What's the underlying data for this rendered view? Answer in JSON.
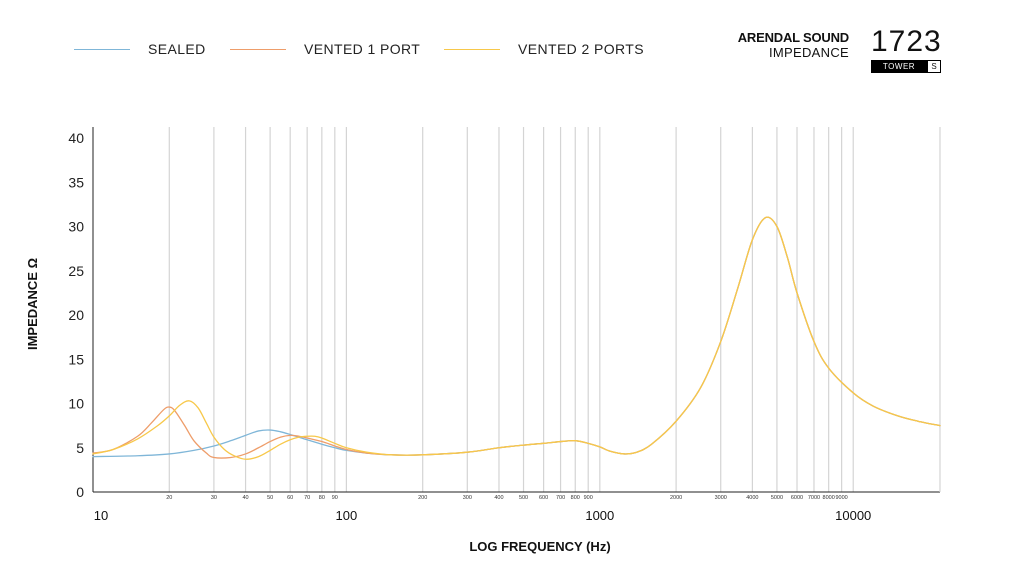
{
  "legend": [
    {
      "label": "SEALED",
      "color": "#7fb6d8"
    },
    {
      "label": "VENTED 1 PORT",
      "color": "#ee9d6a"
    },
    {
      "label": "VENTED 2 PORTS",
      "color": "#f7c84a"
    }
  ],
  "brand": {
    "name": "ARENDAL SOUND",
    "subtitle": "IMPEDANCE"
  },
  "model": {
    "number": "1723",
    "tag": "TOWER",
    "variant": "S"
  },
  "chart_data": {
    "type": "line",
    "xlabel": "LOG FREQUENCY (Hz)",
    "ylabel": "IMPEDANCE Ω",
    "x_scale": "log",
    "xlim": [
      10,
      22000
    ],
    "ylim": [
      0,
      40
    ],
    "y_ticks": [
      0,
      5,
      10,
      15,
      20,
      25,
      30,
      35,
      40
    ],
    "x_major_ticks": [
      10,
      100,
      1000,
      10000
    ],
    "x_minor_ticks": [
      20,
      30,
      40,
      50,
      60,
      70,
      80,
      90,
      200,
      300,
      400,
      500,
      600,
      700,
      800,
      900,
      2000,
      3000,
      4000,
      5000,
      6000,
      7000,
      8000,
      9000
    ],
    "grid": "vertical",
    "series": [
      {
        "name": "SEALED",
        "color": "#7fb6d8",
        "points": [
          [
            10,
            4.0
          ],
          [
            15,
            4.1
          ],
          [
            20,
            4.3
          ],
          [
            25,
            4.7
          ],
          [
            30,
            5.2
          ],
          [
            35,
            5.8
          ],
          [
            40,
            6.4
          ],
          [
            45,
            6.9
          ],
          [
            50,
            7.0
          ],
          [
            55,
            6.8
          ],
          [
            60,
            6.5
          ],
          [
            70,
            5.9
          ],
          [
            80,
            5.4
          ],
          [
            90,
            5.0
          ],
          [
            100,
            4.7
          ],
          [
            120,
            4.4
          ],
          [
            150,
            4.2
          ],
          [
            200,
            4.2
          ],
          [
            300,
            4.5
          ],
          [
            400,
            5.0
          ],
          [
            500,
            5.3
          ],
          [
            600,
            5.5
          ],
          [
            700,
            5.7
          ],
          [
            800,
            5.8
          ],
          [
            900,
            5.5
          ],
          [
            1000,
            5.1
          ],
          [
            1100,
            4.6
          ],
          [
            1250,
            4.3
          ],
          [
            1400,
            4.5
          ],
          [
            1600,
            5.4
          ],
          [
            2000,
            8.0
          ],
          [
            2500,
            11.8
          ],
          [
            3000,
            17.0
          ],
          [
            3500,
            23.0
          ],
          [
            4000,
            28.5
          ],
          [
            4500,
            31.0
          ],
          [
            5000,
            30.0
          ],
          [
            5500,
            26.5
          ],
          [
            6000,
            22.5
          ],
          [
            7000,
            17.0
          ],
          [
            8000,
            14.0
          ],
          [
            10000,
            11.2
          ],
          [
            12000,
            9.7
          ],
          [
            15000,
            8.6
          ],
          [
            18000,
            8.0
          ],
          [
            22000,
            7.5
          ]
        ]
      },
      {
        "name": "VENTED 1 PORT",
        "color": "#ee9d6a",
        "points": [
          [
            10,
            4.4
          ],
          [
            12,
            4.8
          ],
          [
            15,
            6.3
          ],
          [
            17,
            7.8
          ],
          [
            19,
            9.3
          ],
          [
            20,
            9.6
          ],
          [
            21,
            9.2
          ],
          [
            23,
            7.5
          ],
          [
            25,
            5.8
          ],
          [
            28,
            4.4
          ],
          [
            30,
            3.9
          ],
          [
            35,
            3.9
          ],
          [
            40,
            4.3
          ],
          [
            45,
            5.0
          ],
          [
            50,
            5.7
          ],
          [
            55,
            6.2
          ],
          [
            60,
            6.4
          ],
          [
            65,
            6.3
          ],
          [
            70,
            6.1
          ],
          [
            80,
            5.7
          ],
          [
            90,
            5.2
          ],
          [
            100,
            4.8
          ],
          [
            120,
            4.4
          ],
          [
            150,
            4.2
          ],
          [
            200,
            4.2
          ],
          [
            300,
            4.5
          ],
          [
            400,
            5.0
          ],
          [
            500,
            5.3
          ],
          [
            600,
            5.5
          ],
          [
            700,
            5.7
          ],
          [
            800,
            5.8
          ],
          [
            900,
            5.5
          ],
          [
            1000,
            5.1
          ],
          [
            1100,
            4.6
          ],
          [
            1250,
            4.3
          ],
          [
            1400,
            4.5
          ],
          [
            1600,
            5.4
          ],
          [
            2000,
            8.0
          ],
          [
            2500,
            11.8
          ],
          [
            3000,
            17.0
          ],
          [
            3500,
            23.0
          ],
          [
            4000,
            28.5
          ],
          [
            4500,
            31.0
          ],
          [
            5000,
            30.0
          ],
          [
            5500,
            26.5
          ],
          [
            6000,
            22.5
          ],
          [
            7000,
            17.0
          ],
          [
            8000,
            14.0
          ],
          [
            10000,
            11.2
          ],
          [
            12000,
            9.7
          ],
          [
            15000,
            8.6
          ],
          [
            18000,
            8.0
          ],
          [
            22000,
            7.5
          ]
        ]
      },
      {
        "name": "VENTED 2 PORTS",
        "color": "#f7c84a",
        "points": [
          [
            10,
            4.3
          ],
          [
            12,
            4.8
          ],
          [
            15,
            6.0
          ],
          [
            18,
            7.5
          ],
          [
            20,
            8.6
          ],
          [
            22,
            9.8
          ],
          [
            24,
            10.3
          ],
          [
            26,
            9.5
          ],
          [
            28,
            7.8
          ],
          [
            30,
            6.2
          ],
          [
            33,
            4.8
          ],
          [
            36,
            4.1
          ],
          [
            40,
            3.7
          ],
          [
            45,
            4.0
          ],
          [
            50,
            4.7
          ],
          [
            55,
            5.4
          ],
          [
            60,
            5.9
          ],
          [
            65,
            6.2
          ],
          [
            70,
            6.3
          ],
          [
            75,
            6.3
          ],
          [
            80,
            6.1
          ],
          [
            90,
            5.5
          ],
          [
            100,
            5.0
          ],
          [
            120,
            4.5
          ],
          [
            150,
            4.2
          ],
          [
            200,
            4.2
          ],
          [
            300,
            4.5
          ],
          [
            400,
            5.0
          ],
          [
            500,
            5.3
          ],
          [
            600,
            5.5
          ],
          [
            700,
            5.7
          ],
          [
            800,
            5.8
          ],
          [
            900,
            5.5
          ],
          [
            1000,
            5.1
          ],
          [
            1100,
            4.6
          ],
          [
            1250,
            4.3
          ],
          [
            1400,
            4.5
          ],
          [
            1600,
            5.4
          ],
          [
            2000,
            8.0
          ],
          [
            2500,
            11.8
          ],
          [
            3000,
            17.0
          ],
          [
            3500,
            23.0
          ],
          [
            4000,
            28.5
          ],
          [
            4500,
            31.0
          ],
          [
            5000,
            30.0
          ],
          [
            5500,
            26.5
          ],
          [
            6000,
            22.5
          ],
          [
            7000,
            17.0
          ],
          [
            8000,
            14.0
          ],
          [
            10000,
            11.2
          ],
          [
            12000,
            9.7
          ],
          [
            15000,
            8.6
          ],
          [
            18000,
            8.0
          ],
          [
            22000,
            7.5
          ]
        ]
      }
    ]
  }
}
